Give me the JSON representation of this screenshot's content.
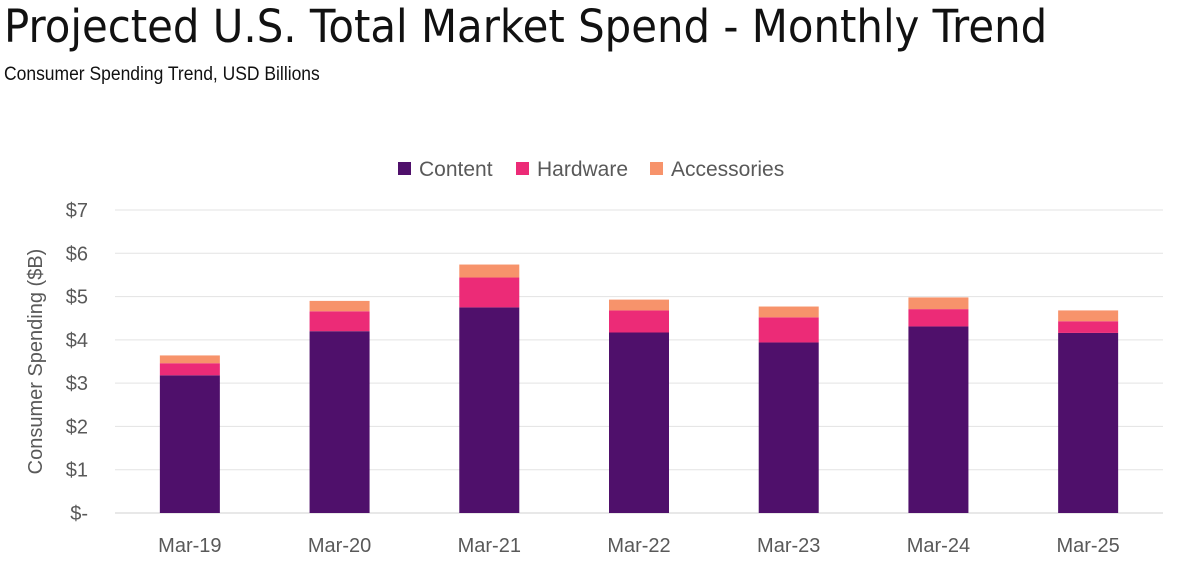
{
  "title": "Projected U.S. Total Market Spend - Monthly Trend",
  "subtitle": "Consumer Spending Trend, USD Billions",
  "chart_data": {
    "type": "bar",
    "stacked": true,
    "categories": [
      "Mar-19",
      "Mar-20",
      "Mar-21",
      "Mar-22",
      "Mar-23",
      "Mar-24",
      "Mar-25"
    ],
    "series": [
      {
        "name": "Content",
        "color": "#4f106b",
        "values": [
          3.18,
          4.2,
          4.75,
          4.17,
          3.94,
          4.31,
          4.16
        ]
      },
      {
        "name": "Hardware",
        "color": "#ec2b77",
        "values": [
          0.28,
          0.46,
          0.69,
          0.51,
          0.58,
          0.4,
          0.27
        ]
      },
      {
        "name": "Accessories",
        "color": "#f7936b",
        "values": [
          0.18,
          0.24,
          0.3,
          0.25,
          0.25,
          0.27,
          0.25
        ]
      }
    ],
    "ylabel": "Consumer Spending ($B)",
    "xlabel": "",
    "ylim": [
      0,
      7
    ],
    "yticks": [
      "$-",
      "$1",
      "$2",
      "$3",
      "$4",
      "$5",
      "$6",
      "$7"
    ],
    "grid": true,
    "legend": "top-center"
  }
}
